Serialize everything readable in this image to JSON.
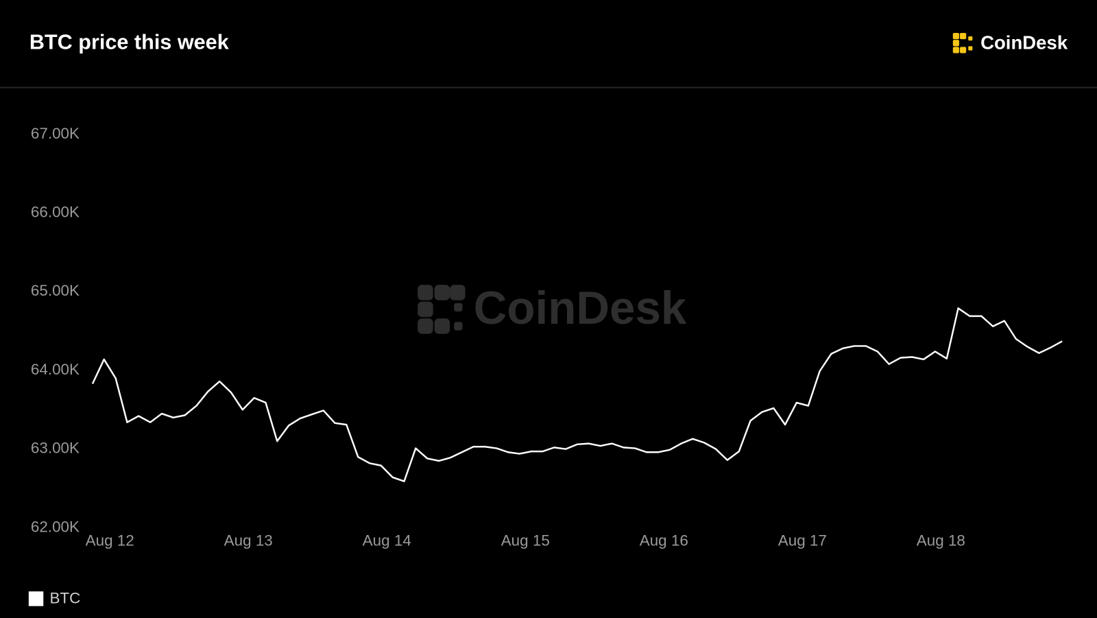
{
  "chart_data": {
    "type": "line",
    "title": "BTC price this week",
    "logo": "CoinDesk",
    "watermark": "CoinDesk",
    "x": [
      11.875,
      11.958,
      12.042,
      12.125,
      12.208,
      12.292,
      12.375,
      12.458,
      12.542,
      12.625,
      12.708,
      12.792,
      12.875,
      12.958,
      13.042,
      13.125,
      13.208,
      13.292,
      13.375,
      13.458,
      13.542,
      13.625,
      13.708,
      13.792,
      13.875,
      13.958,
      14.042,
      14.125,
      14.208,
      14.292,
      14.375,
      14.458,
      14.542,
      14.625,
      14.708,
      14.792,
      14.875,
      14.958,
      15.042,
      15.125,
      15.208,
      15.292,
      15.375,
      15.458,
      15.542,
      15.625,
      15.708,
      15.792,
      15.875,
      15.958,
      16.042,
      16.125,
      16.208,
      16.292,
      16.375,
      16.458,
      16.542,
      16.625,
      16.708,
      16.792,
      16.875,
      16.958,
      17.042,
      17.125,
      17.208,
      17.292,
      17.375,
      17.458,
      17.542,
      17.625,
      17.708,
      17.792,
      17.875,
      17.958,
      18.042,
      18.125,
      18.208,
      18.292,
      18.375,
      18.458,
      18.542,
      18.625,
      18.708,
      18.792,
      18.875
    ],
    "series": [
      {
        "name": "BTC",
        "color": "#ffffff",
        "values": [
          63830,
          64140,
          63900,
          63340,
          63420,
          63340,
          63450,
          63400,
          63430,
          63550,
          63730,
          63860,
          63720,
          63500,
          63650,
          63590,
          63100,
          63300,
          63390,
          63440,
          63490,
          63330,
          63310,
          62900,
          62820,
          62790,
          62640,
          62590,
          63010,
          62880,
          62850,
          62890,
          62960,
          63030,
          63030,
          63010,
          62960,
          62940,
          62970,
          62970,
          63020,
          63000,
          63060,
          63070,
          63040,
          63070,
          63020,
          63010,
          62960,
          62960,
          62990,
          63070,
          63130,
          63080,
          63000,
          62860,
          62970,
          63360,
          63470,
          63520,
          63310,
          63590,
          63550,
          63990,
          64210,
          64280,
          64310,
          64310,
          64240,
          64080,
          64160,
          64170,
          64140,
          64240,
          64150,
          64790,
          64690,
          64690,
          64560,
          64630,
          64400,
          64300,
          64220,
          64290,
          64370
        ]
      }
    ],
    "xlim": [
      11.75,
      18.95
    ],
    "xticks": [
      {
        "value": 12,
        "label": "Aug 12"
      },
      {
        "value": 13,
        "label": "Aug 13"
      },
      {
        "value": 14,
        "label": "Aug 14"
      },
      {
        "value": 15,
        "label": "Aug 15"
      },
      {
        "value": 16,
        "label": "Aug 16"
      },
      {
        "value": 17,
        "label": "Aug 17"
      },
      {
        "value": 18,
        "label": "Aug 18"
      }
    ],
    "ylim": [
      62000,
      67000
    ],
    "yticks": [
      {
        "value": 62000,
        "label": "62.00K"
      },
      {
        "value": 63000,
        "label": "63.00K"
      },
      {
        "value": 64000,
        "label": "64.00K"
      },
      {
        "value": 65000,
        "label": "65.00K"
      },
      {
        "value": 66000,
        "label": "66.00K"
      },
      {
        "value": 67000,
        "label": "67.00K"
      }
    ]
  }
}
